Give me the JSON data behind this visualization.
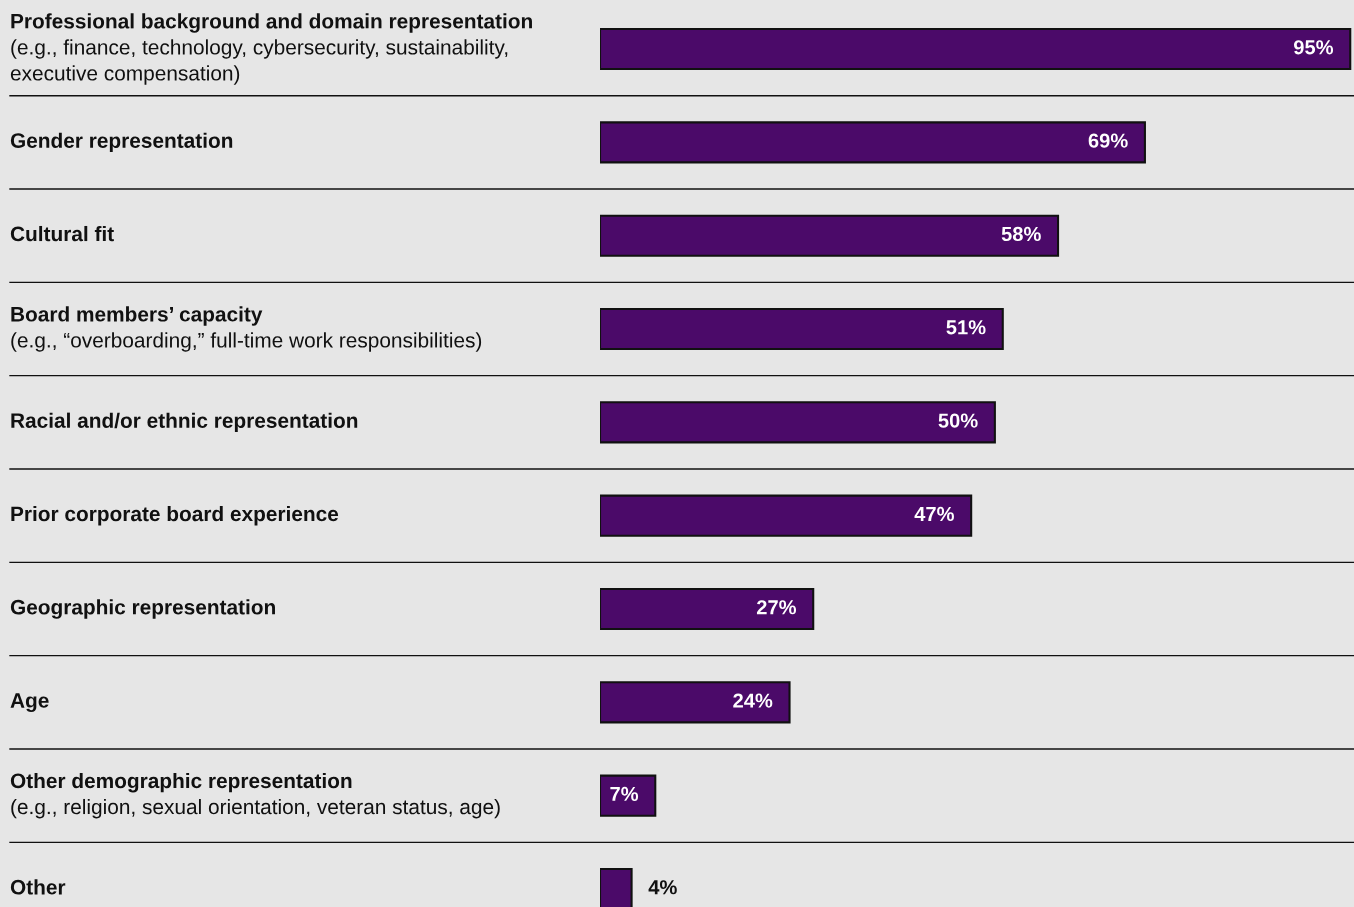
{
  "chart_data": {
    "type": "bar",
    "orientation": "horizontal",
    "categories": [
      "Professional background and domain representation\n(e.g., finance, technology, cybersecurity, sustainability,\nexecutive compensation)",
      "Gender representation",
      "Cultural fit",
      "Board members’ capacity\n(e.g., “overboarding,” full-time work responsibilities)",
      "Racial and/or ethnic representation",
      "Prior corporate board experience",
      "Geographic representation",
      "Age",
      "Other demographic representation\n(e.g., religion, sexual orientation, veteran status, age)",
      "Other"
    ],
    "values": [
      95,
      69,
      58,
      51,
      50,
      47,
      27,
      24,
      7,
      4
    ],
    "value_labels": [
      "95%",
      "69%",
      "58%",
      "51%",
      "50%",
      "47%",
      "27%",
      "24%",
      "7%",
      "4%"
    ],
    "color": "#4b0a69",
    "tick_labels": "y"
  }
}
